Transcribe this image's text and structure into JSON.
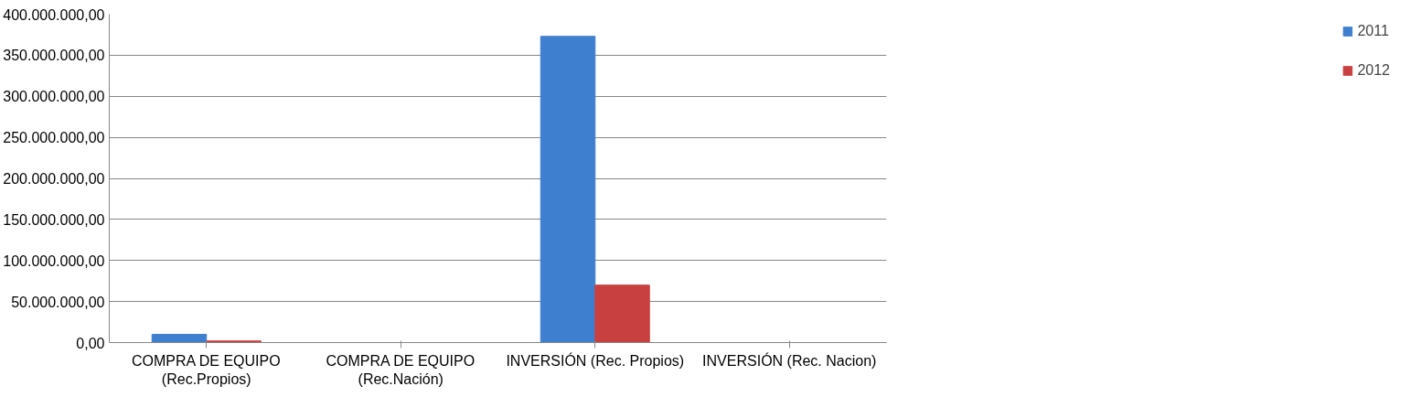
{
  "chart_data": {
    "type": "bar",
    "categories": [
      "COMPRA DE EQUIPO\n(Rec.Propios)",
      "COMPRA DE EQUIPO\n(Rec.Nación)",
      "INVERSIÓN (Rec. Propios)",
      "INVERSIÓN (Rec. Nacion)"
    ],
    "series": [
      {
        "name": "2011",
        "color": "#3f7fcf",
        "values": [
          10000000,
          null,
          373000000,
          null
        ]
      },
      {
        "name": "2012",
        "color": "#c94040",
        "values": [
          2000000,
          null,
          70000000,
          null
        ]
      }
    ],
    "ylim": [
      0,
      400000000
    ],
    "yticks": [
      {
        "value": 0,
        "label": "0,00"
      },
      {
        "value": 50000000,
        "label": "50.000.000,00"
      },
      {
        "value": 100000000,
        "label": "100.000.000,00"
      },
      {
        "value": 150000000,
        "label": "150.000.000,00"
      },
      {
        "value": 200000000,
        "label": "200.000.000,00"
      },
      {
        "value": 250000000,
        "label": "250.000.000,00"
      },
      {
        "value": 300000000,
        "label": "300.000.000,00"
      },
      {
        "value": 350000000,
        "label": "350.000.000,00"
      },
      {
        "value": 400000000,
        "label": "400.000.000,00"
      }
    ],
    "grid": "y",
    "legend": "right"
  }
}
